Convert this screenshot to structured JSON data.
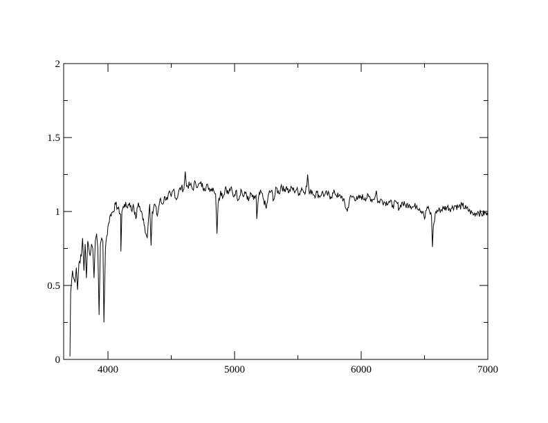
{
  "chart_data": {
    "type": "line",
    "title": "",
    "xlabel": "",
    "ylabel": "",
    "xlim": [
      3650,
      7000
    ],
    "ylim": [
      0,
      2
    ],
    "x_ticks": [
      4000,
      5000,
      6000,
      7000
    ],
    "x_tick_labels": [
      "4000",
      "5000",
      "6000",
      "7000"
    ],
    "x_minor_ticks": [
      4500,
      5500,
      6500
    ],
    "y_ticks": [
      0,
      0.5,
      1,
      1.5,
      2
    ],
    "y_tick_labels": [
      "0",
      "0.5",
      "1",
      "1.5",
      "2"
    ],
    "y_minor_ticks": [
      0.25,
      0.75,
      1.25,
      1.75
    ],
    "grid": false,
    "line_color": "#000000",
    "series": [
      {
        "x": [
          3700,
          3705,
          3720,
          3740,
          3750,
          3760,
          3770,
          3790,
          3800,
          3810,
          3820,
          3830,
          3840,
          3860,
          3870,
          3880,
          3890,
          3900,
          3910,
          3920,
          3930,
          3940,
          3950,
          3960,
          3968,
          3980,
          4000,
          4020,
          4040,
          4060,
          4080,
          4100,
          4102,
          4110,
          4130,
          4150,
          4170,
          4190,
          4200,
          4220,
          4240,
          4260,
          4280,
          4300,
          4310,
          4320,
          4330,
          4340,
          4350,
          4370,
          4390,
          4410,
          4430,
          4450,
          4470,
          4490,
          4500,
          4520,
          4540,
          4560,
          4580,
          4600,
          4610,
          4620,
          4650,
          4670,
          4690,
          4710,
          4730,
          4760,
          4790,
          4810,
          4830,
          4850,
          4861,
          4870,
          4890,
          4910,
          4930,
          4950,
          4970,
          4990,
          5010,
          5030,
          5050,
          5070,
          5090,
          5110,
          5130,
          5150,
          5170,
          5175,
          5190,
          5210,
          5230,
          5250,
          5270,
          5290,
          5310,
          5330,
          5350,
          5370,
          5390,
          5410,
          5430,
          5450,
          5470,
          5490,
          5510,
          5530,
          5550,
          5570,
          5577,
          5590,
          5610,
          5630,
          5650,
          5670,
          5690,
          5710,
          5730,
          5760,
          5790,
          5820,
          5850,
          5890,
          5910,
          5940,
          5970,
          6000,
          6030,
          6060,
          6090,
          6110,
          6120,
          6130,
          6160,
          6190,
          6220,
          6250,
          6280,
          6300,
          6320,
          6350,
          6380,
          6410,
          6440,
          6460,
          6490,
          6500,
          6520,
          6540,
          6555,
          6563,
          6570,
          6590,
          6620,
          6650,
          6680,
          6710,
          6740,
          6770,
          6800,
          6830,
          6860,
          6890,
          6920,
          6950,
          6980,
          7000
        ],
        "y": [
          0.02,
          0.45,
          0.6,
          0.52,
          0.62,
          0.47,
          0.65,
          0.7,
          0.82,
          0.6,
          0.78,
          0.55,
          0.8,
          0.7,
          0.78,
          0.75,
          0.55,
          0.8,
          0.85,
          0.75,
          0.3,
          0.78,
          0.82,
          0.8,
          0.25,
          0.75,
          0.9,
          0.98,
          1.0,
          1.05,
          1.02,
          0.98,
          0.73,
          1.0,
          1.05,
          1.03,
          1.06,
          1.0,
          1.05,
          0.95,
          1.06,
          1.0,
          0.95,
          0.85,
          0.82,
          0.95,
          1.05,
          0.77,
          1.0,
          1.05,
          0.97,
          1.08,
          1.05,
          1.1,
          1.08,
          1.13,
          1.1,
          1.15,
          1.08,
          1.14,
          1.16,
          1.15,
          1.27,
          1.17,
          1.18,
          1.15,
          1.2,
          1.17,
          1.19,
          1.16,
          1.17,
          1.15,
          1.16,
          1.12,
          0.85,
          1.05,
          1.14,
          1.1,
          1.17,
          1.12,
          1.16,
          1.1,
          1.14,
          1.08,
          1.15,
          1.1,
          1.13,
          1.07,
          1.12,
          1.08,
          1.11,
          0.95,
          1.1,
          1.13,
          1.08,
          1.02,
          1.12,
          1.14,
          1.08,
          1.16,
          1.12,
          1.18,
          1.14,
          1.17,
          1.13,
          1.16,
          1.14,
          1.15,
          1.12,
          1.16,
          1.13,
          1.17,
          1.25,
          1.12,
          1.14,
          1.11,
          1.13,
          1.1,
          1.13,
          1.11,
          1.12,
          1.1,
          1.13,
          1.1,
          1.1,
          1.0,
          1.09,
          1.1,
          1.08,
          1.1,
          1.09,
          1.1,
          1.08,
          1.1,
          1.14,
          1.06,
          1.08,
          1.06,
          1.07,
          1.04,
          1.06,
          1.02,
          1.06,
          1.04,
          1.05,
          1.03,
          1.04,
          1.02,
          1.0,
          0.95,
          1.03,
          1.0,
          0.97,
          0.76,
          0.9,
          1.0,
          1.01,
          1.02,
          1.03,
          1.02,
          1.04,
          1.03,
          1.04,
          1.02,
          1.0,
          0.98,
          1.0,
          0.98,
          0.99,
          0.97
        ]
      }
    ]
  }
}
